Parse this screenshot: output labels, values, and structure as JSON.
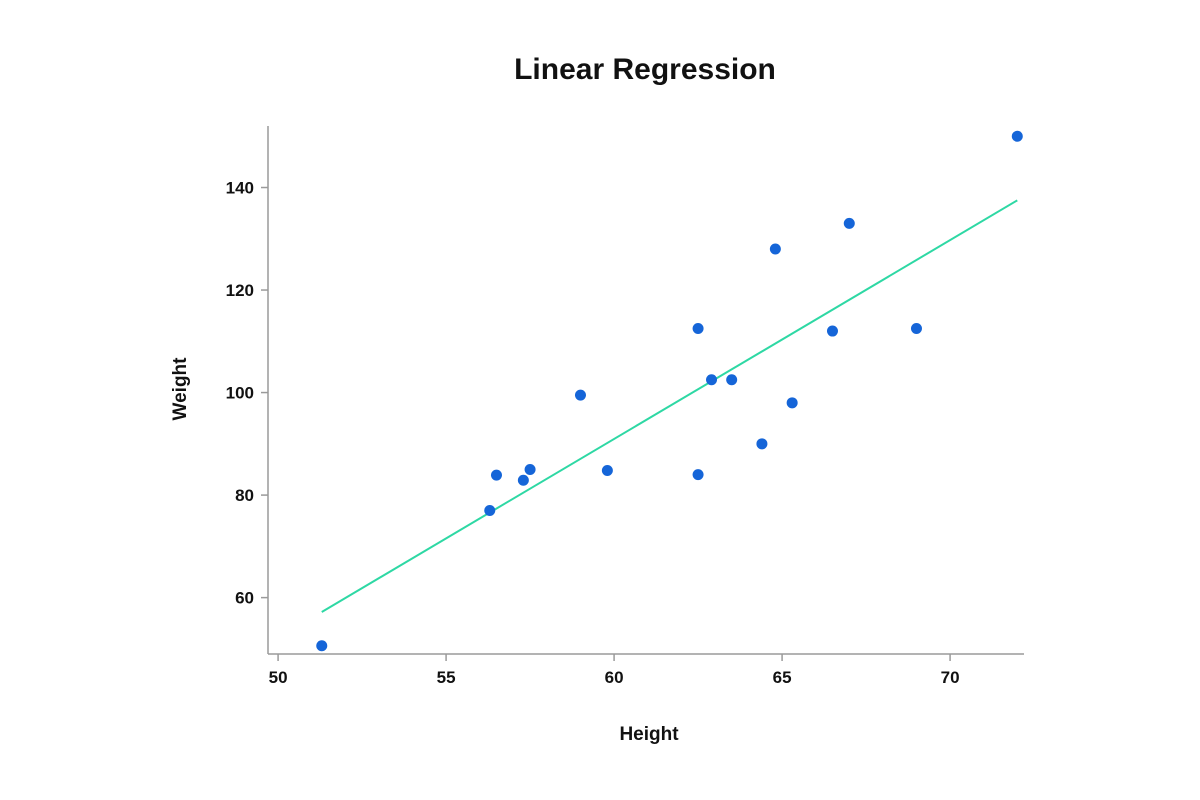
{
  "chart_data": {
    "type": "scatter",
    "title": "Linear Regression",
    "xlabel": "Height",
    "ylabel": "Weight",
    "xlim": [
      49.7,
      72.2
    ],
    "ylim": [
      49,
      152
    ],
    "xticks": [
      50,
      55,
      60,
      65,
      70
    ],
    "yticks": [
      60,
      80,
      100,
      120,
      140
    ],
    "grid": false,
    "legend": "none",
    "series": [
      {
        "kind": "points",
        "color": "#1565d8",
        "points": [
          {
            "x": 51.3,
            "y": 50.6
          },
          {
            "x": 56.3,
            "y": 77.0
          },
          {
            "x": 56.5,
            "y": 83.9
          },
          {
            "x": 57.3,
            "y": 82.9
          },
          {
            "x": 57.5,
            "y": 85.0
          },
          {
            "x": 59.0,
            "y": 99.5
          },
          {
            "x": 59.8,
            "y": 84.8
          },
          {
            "x": 62.5,
            "y": 112.5
          },
          {
            "x": 62.5,
            "y": 84.0
          },
          {
            "x": 62.9,
            "y": 102.5
          },
          {
            "x": 63.5,
            "y": 102.5
          },
          {
            "x": 64.4,
            "y": 90.0
          },
          {
            "x": 64.8,
            "y": 128.0
          },
          {
            "x": 65.3,
            "y": 98.0
          },
          {
            "x": 66.5,
            "y": 112.0
          },
          {
            "x": 67.0,
            "y": 133.0
          },
          {
            "x": 69.0,
            "y": 112.5
          },
          {
            "x": 72.0,
            "y": 150.0
          }
        ]
      },
      {
        "kind": "regression-line",
        "color": "#2ed8a4",
        "points": [
          {
            "x": 51.3,
            "y": 57.2
          },
          {
            "x": 72.0,
            "y": 137.5
          }
        ]
      }
    ]
  }
}
